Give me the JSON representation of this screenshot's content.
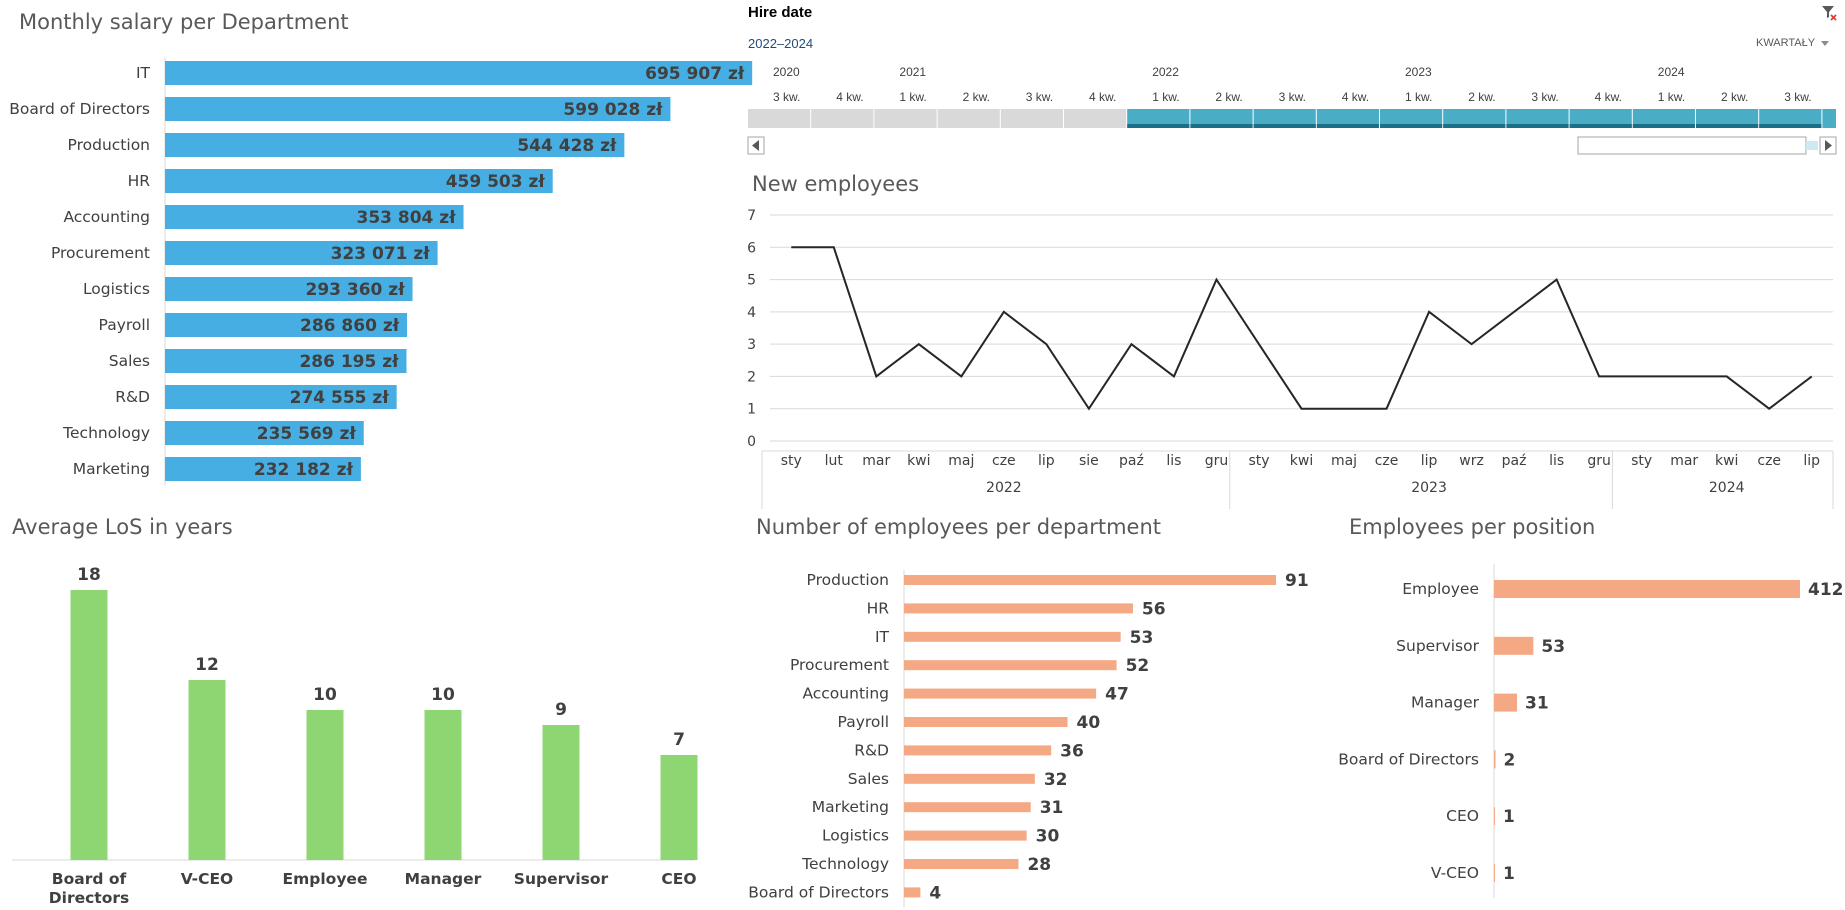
{
  "timeline": {
    "title": "Hire date",
    "range": "2022–2024",
    "level": "KWARTAŁY",
    "icons": {
      "clear_filter": "clear-filter-icon",
      "scroll_left": "arrow-left-icon",
      "scroll_right": "arrow-right-icon"
    },
    "years": [
      {
        "label": "2020",
        "start": 0
      },
      {
        "label": "2021",
        "start": 2
      },
      {
        "label": "2022",
        "start": 6
      },
      {
        "label": "2023",
        "start": 10
      },
      {
        "label": "2024",
        "start": 14
      }
    ],
    "quarters": [
      "3 kw.",
      "4 kw.",
      "1 kw.",
      "2 kw.",
      "3 kw.",
      "4 kw.",
      "1 kw.",
      "2 kw.",
      "3 kw.",
      "4 kw.",
      "1 kw.",
      "2 kw.",
      "3 kw.",
      "4 kw.",
      "1 kw.",
      "2 kw.",
      "3 kw."
    ],
    "selected_from": 6,
    "colors": {
      "selected": "#4bacc6",
      "unselected": "#d9d9d9"
    }
  },
  "chart_data": [
    {
      "id": "salary",
      "type": "bar",
      "orientation": "horizontal",
      "title": "Monthly salary per Department",
      "categories": [
        "IT",
        "Board of Directors",
        "Production",
        "HR",
        "Accounting",
        "Procurement",
        "Logistics",
        "Payroll",
        "Sales",
        "R&D",
        "Technology",
        "Marketing"
      ],
      "values": [
        695907,
        599028,
        544428,
        459503,
        353804,
        323071,
        293360,
        286860,
        286195,
        274555,
        235569,
        232182
      ],
      "labels": [
        "695 907 zł",
        "599 028 zł",
        "544 428 zł",
        "459 503 zł",
        "353 804 zł",
        "323 071 zł",
        "293 360 zł",
        "286 860 zł",
        "286 195 zł",
        "274 555 zł",
        "235 569 zł",
        "232 182 zł"
      ],
      "xlim": [
        0,
        800000
      ],
      "color": "#47aee3"
    },
    {
      "id": "new_employees",
      "type": "line",
      "title": "New employees",
      "ylim": [
        0,
        7
      ],
      "yticks": [
        0,
        1,
        2,
        3,
        4,
        5,
        6,
        7
      ],
      "grid": true,
      "color": "#262626",
      "groups": [
        {
          "year": "2022",
          "months": [
            "sty",
            "lut",
            "mar",
            "kwi",
            "maj",
            "cze",
            "lip",
            "sie",
            "paź",
            "lis",
            "gru"
          ],
          "values": [
            6,
            6,
            2,
            3,
            2,
            4,
            3,
            1,
            3,
            2,
            5
          ]
        },
        {
          "year": "2023",
          "months": [
            "sty",
            "kwi",
            "maj",
            "cze",
            "lip",
            "wrz",
            "paź",
            "lis",
            "gru"
          ],
          "values": [
            3,
            1,
            1,
            1,
            4,
            3,
            4,
            5,
            2
          ]
        },
        {
          "year": "2024",
          "months": [
            "sty",
            "mar",
            "kwi",
            "cze",
            "lip"
          ],
          "values": [
            2,
            2,
            2,
            1,
            2
          ]
        }
      ]
    },
    {
      "id": "los",
      "type": "bar",
      "orientation": "vertical",
      "title": "Average LoS in years",
      "categories": [
        "Board of Directors",
        "V-CEO",
        "Employee",
        "Manager",
        "Supervisor",
        "CEO"
      ],
      "values": [
        18,
        12,
        10,
        10,
        9,
        7
      ],
      "ylim": [
        0,
        18
      ],
      "color": "#8dd672"
    },
    {
      "id": "emp_dept",
      "type": "bar",
      "orientation": "horizontal",
      "title": "Number of employees per department",
      "categories": [
        "Production",
        "HR",
        "IT",
        "Procurement",
        "Accounting",
        "Payroll",
        "R&D",
        "Sales",
        "Marketing",
        "Logistics",
        "Technology",
        "Board of Directors"
      ],
      "values": [
        91,
        56,
        53,
        52,
        47,
        40,
        36,
        32,
        31,
        30,
        28,
        4
      ],
      "xlim": [
        0,
        91
      ],
      "color": "#f4a884"
    },
    {
      "id": "emp_pos",
      "type": "bar",
      "orientation": "horizontal",
      "title": "Employees per position",
      "categories": [
        "Employee",
        "Supervisor",
        "Manager",
        "Board of Directors",
        "CEO",
        "V-CEO"
      ],
      "values": [
        412,
        53,
        31,
        2,
        1,
        1
      ],
      "xlim": [
        0,
        412
      ],
      "color": "#f4a884"
    }
  ]
}
